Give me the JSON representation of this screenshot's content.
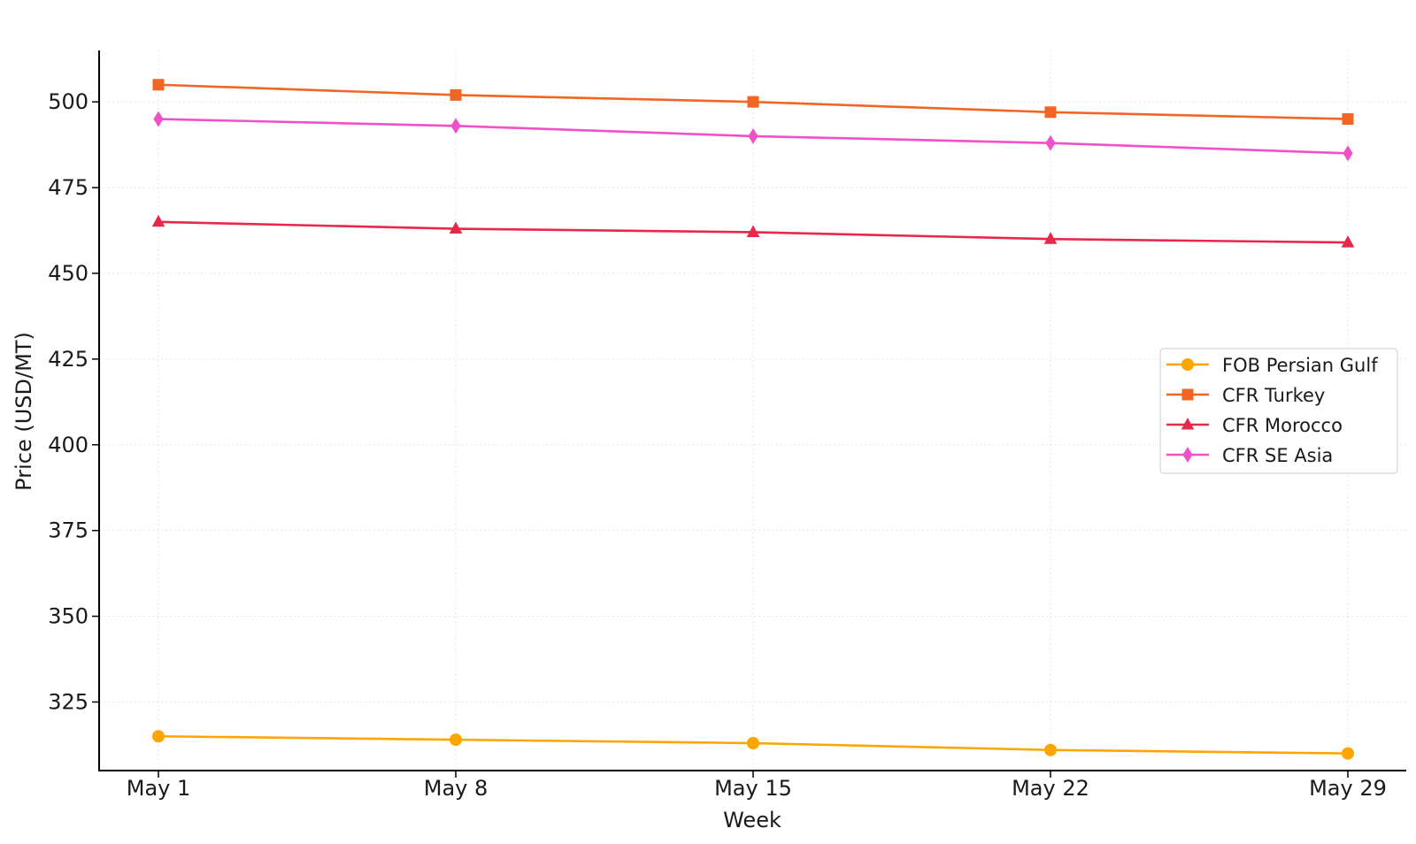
{
  "chart_data": {
    "type": "line",
    "categories": [
      "May 1",
      "May 8",
      "May 15",
      "May 22",
      "May 29"
    ],
    "xlabel": "Week",
    "ylabel": "Price (USD/MT)",
    "ylim": [
      305,
      515
    ],
    "yticks": [
      325,
      350,
      375,
      400,
      425,
      450,
      475,
      500
    ],
    "grid": "faint dotted",
    "legend_position": "right-center",
    "series": [
      {
        "name": "FOB Persian Gulf",
        "color": "#FFA500",
        "marker": "circle",
        "values": [
          315,
          314,
          313,
          311,
          310
        ]
      },
      {
        "name": "CFR Turkey",
        "color": "#F26522",
        "marker": "square",
        "values": [
          505,
          502,
          500,
          497,
          495
        ]
      },
      {
        "name": "CFR Morocco",
        "color": "#E8284A",
        "marker": "triangle",
        "values": [
          465,
          463,
          462,
          460,
          459
        ]
      },
      {
        "name": "CFR SE Asia",
        "color": "#F250C8",
        "marker": "diamond",
        "values": [
          495,
          493,
          490,
          488,
          485
        ]
      }
    ]
  }
}
